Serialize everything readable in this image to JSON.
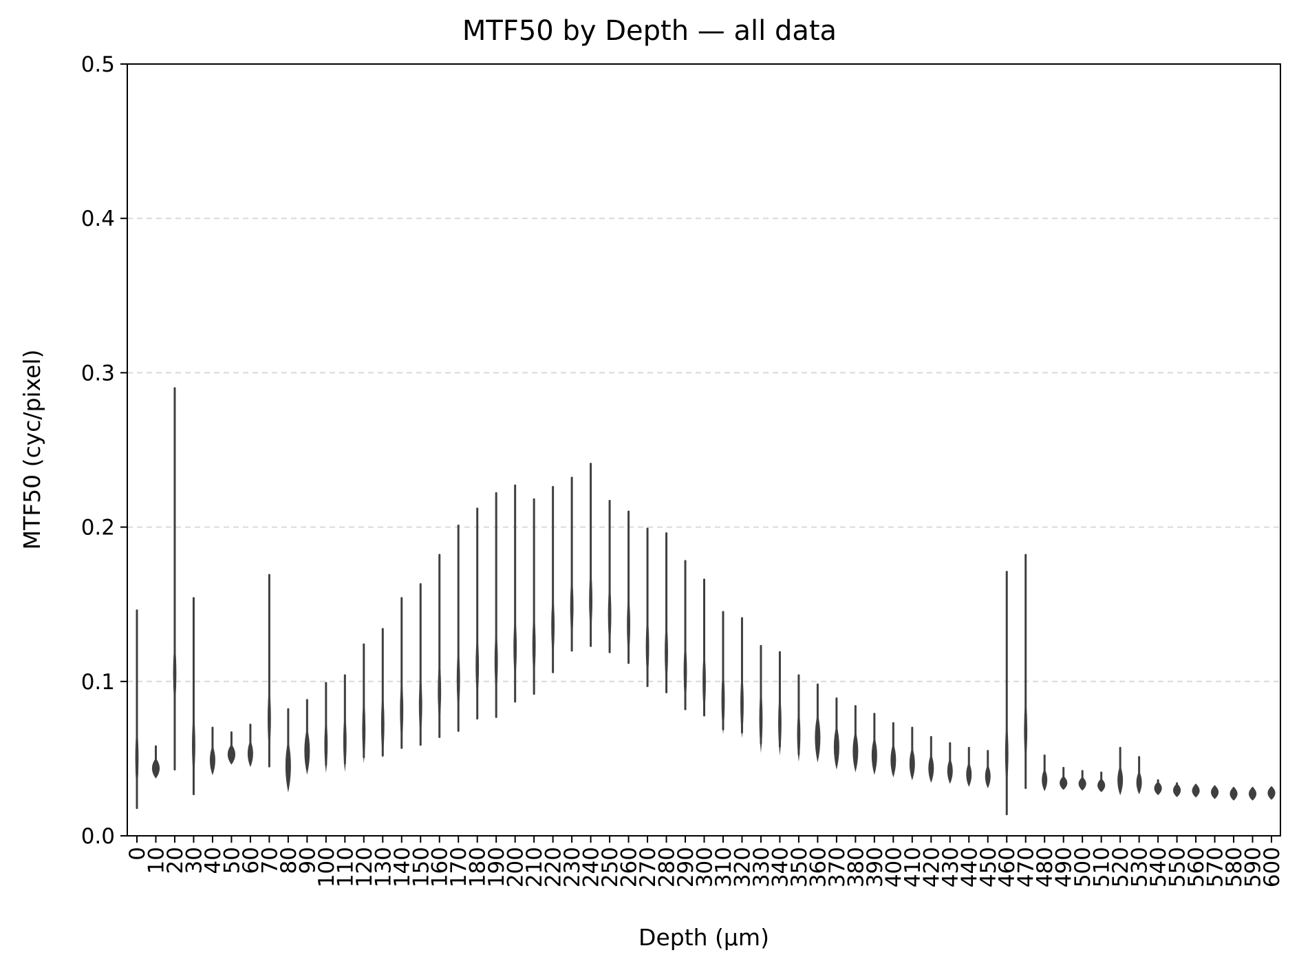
{
  "chart_data": {
    "type": "violin",
    "title": "MTF50 by Depth — all data",
    "xlabel": "Depth (µm)",
    "ylabel": "MTF50 (cyc/pixel)",
    "ylim": [
      0,
      0.5
    ],
    "yticks": [
      "0.0",
      "0.1",
      "0.2",
      "0.3",
      "0.4",
      "0.5"
    ],
    "grid": "horizontal dashed",
    "violin_color": "#3f3f3f",
    "categories": [
      "0",
      "10",
      "20",
      "30",
      "40",
      "50",
      "60",
      "70",
      "80",
      "90",
      "100",
      "110",
      "120",
      "130",
      "140",
      "150",
      "160",
      "170",
      "180",
      "190",
      "200",
      "210",
      "220",
      "230",
      "240",
      "250",
      "260",
      "270",
      "280",
      "290",
      "300",
      "310",
      "320",
      "330",
      "340",
      "350",
      "360",
      "370",
      "380",
      "390",
      "400",
      "410",
      "420",
      "430",
      "440",
      "450",
      "460",
      "470",
      "480",
      "490",
      "500",
      "510",
      "520",
      "530",
      "540",
      "550",
      "560",
      "570",
      "580",
      "590",
      "600"
    ],
    "series": [
      {
        "min": 0.018,
        "max": 0.146
      },
      {
        "min": 0.039,
        "max": 0.058
      },
      {
        "min": 0.043,
        "max": 0.29
      },
      {
        "min": 0.027,
        "max": 0.154
      },
      {
        "min": 0.042,
        "max": 0.07
      },
      {
        "min": 0.048,
        "max": 0.067
      },
      {
        "min": 0.047,
        "max": 0.072
      },
      {
        "min": 0.045,
        "max": 0.169
      },
      {
        "min": 0.033,
        "max": 0.082
      },
      {
        "min": 0.044,
        "max": 0.088
      },
      {
        "min": 0.046,
        "max": 0.099
      },
      {
        "min": 0.047,
        "max": 0.104
      },
      {
        "min": 0.051,
        "max": 0.124
      },
      {
        "min": 0.052,
        "max": 0.134
      },
      {
        "min": 0.057,
        "max": 0.154
      },
      {
        "min": 0.059,
        "max": 0.163
      },
      {
        "min": 0.064,
        "max": 0.182
      },
      {
        "min": 0.068,
        "max": 0.201
      },
      {
        "min": 0.076,
        "max": 0.212
      },
      {
        "min": 0.077,
        "max": 0.222
      },
      {
        "min": 0.087,
        "max": 0.227
      },
      {
        "min": 0.092,
        "max": 0.218
      },
      {
        "min": 0.106,
        "max": 0.226
      },
      {
        "min": 0.12,
        "max": 0.232
      },
      {
        "min": 0.123,
        "max": 0.241
      },
      {
        "min": 0.119,
        "max": 0.217
      },
      {
        "min": 0.112,
        "max": 0.21
      },
      {
        "min": 0.097,
        "max": 0.199
      },
      {
        "min": 0.093,
        "max": 0.196
      },
      {
        "min": 0.082,
        "max": 0.178
      },
      {
        "min": 0.078,
        "max": 0.166
      },
      {
        "min": 0.069,
        "max": 0.145
      },
      {
        "min": 0.067,
        "max": 0.141
      },
      {
        "min": 0.06,
        "max": 0.123
      },
      {
        "min": 0.058,
        "max": 0.119
      },
      {
        "min": 0.053,
        "max": 0.104
      },
      {
        "min": 0.052,
        "max": 0.098
      },
      {
        "min": 0.047,
        "max": 0.089
      },
      {
        "min": 0.045,
        "max": 0.084
      },
      {
        "min": 0.043,
        "max": 0.079
      },
      {
        "min": 0.041,
        "max": 0.073
      },
      {
        "min": 0.039,
        "max": 0.07
      },
      {
        "min": 0.037,
        "max": 0.064
      },
      {
        "min": 0.036,
        "max": 0.06
      },
      {
        "min": 0.034,
        "max": 0.057
      },
      {
        "min": 0.033,
        "max": 0.055
      },
      {
        "min": 0.014,
        "max": 0.171
      },
      {
        "min": 0.031,
        "max": 0.182
      },
      {
        "min": 0.031,
        "max": 0.052
      },
      {
        "min": 0.031,
        "max": 0.044
      },
      {
        "min": 0.031,
        "max": 0.042
      },
      {
        "min": 0.03,
        "max": 0.041
      },
      {
        "min": 0.029,
        "max": 0.057
      },
      {
        "min": 0.029,
        "max": 0.051
      },
      {
        "min": 0.029,
        "max": 0.036
      },
      {
        "min": 0.028,
        "max": 0.034
      },
      {
        "min": 0.028,
        "max": 0.033
      },
      {
        "min": 0.027,
        "max": 0.032
      },
      {
        "min": 0.026,
        "max": 0.031
      },
      {
        "min": 0.026,
        "max": 0.031
      },
      {
        "min": 0.027,
        "max": 0.03
      }
    ]
  }
}
